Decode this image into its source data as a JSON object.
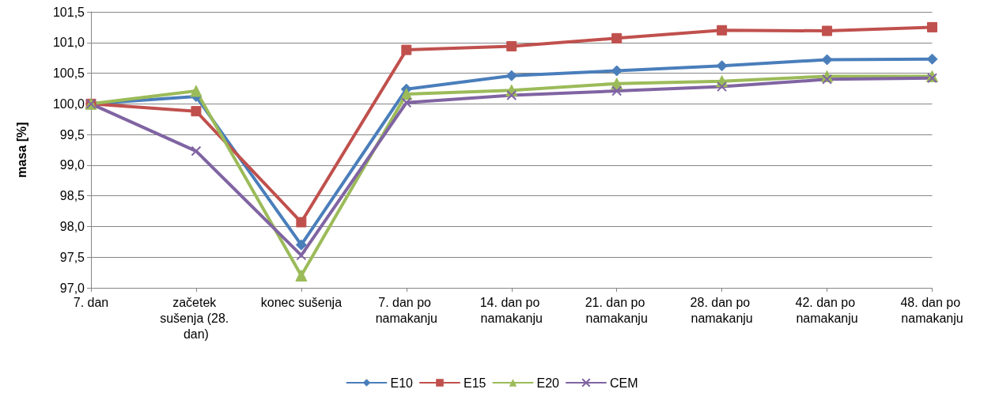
{
  "chart_data": {
    "type": "line",
    "ylabel": "masa [%]",
    "categories": [
      "7. dan",
      "začetek sušenja (28. dan)",
      "konec sušenja",
      "7. dan po namakanju",
      "14. dan po namakanju",
      "21. dan po namakanju",
      "28. dan po namakanju",
      "42. dan po namakanju",
      "48. dan po namakanju"
    ],
    "series": [
      {
        "name": "E10",
        "color": "#4a7ebb",
        "marker": "diamond",
        "values": [
          100.0,
          100.12,
          97.7,
          100.24,
          100.46,
          100.54,
          100.62,
          100.72,
          100.73
        ]
      },
      {
        "name": "E15",
        "color": "#c0504d",
        "marker": "square",
        "values": [
          100.0,
          99.88,
          98.07,
          100.88,
          100.94,
          101.07,
          101.2,
          101.19,
          101.25
        ]
      },
      {
        "name": "E20",
        "color": "#9bbb59",
        "marker": "triangle",
        "values": [
          100.0,
          100.21,
          97.2,
          100.16,
          100.22,
          100.33,
          100.37,
          100.45,
          100.45
        ]
      },
      {
        "name": "CEM",
        "color": "#8064a2",
        "marker": "cross",
        "values": [
          100.0,
          99.23,
          97.53,
          100.02,
          100.14,
          100.21,
          100.28,
          100.4,
          100.42
        ]
      }
    ],
    "ylim": [
      97.0,
      101.5
    ],
    "yticks": [
      {
        "value": 97,
        "label": "97,0"
      },
      {
        "value": 97.5,
        "label": "97,5"
      },
      {
        "value": 98,
        "label": "98,0"
      },
      {
        "value": 98.5,
        "label": "98,5"
      },
      {
        "value": 99,
        "label": "99,0"
      },
      {
        "value": 99.5,
        "label": "99,5"
      },
      {
        "value": 100,
        "label": "100,0"
      },
      {
        "value": 100.5,
        "label": "100,5"
      },
      {
        "value": 101,
        "label": "101,0"
      },
      {
        "value": 101.5,
        "label": "101,5"
      }
    ],
    "grid": "y",
    "legend": "bottom",
    "line_style": "solid"
  }
}
